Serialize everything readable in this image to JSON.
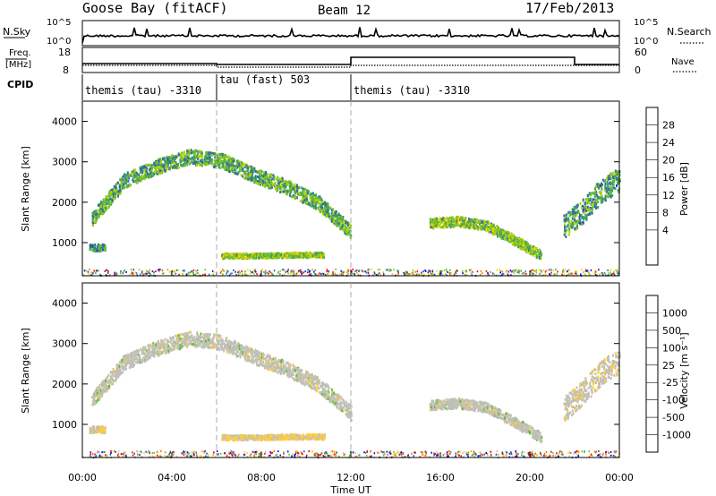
{
  "header": {
    "station": "Goose Bay (fitACF)",
    "beam": "Beam 12",
    "date": "17/Feb/2013"
  },
  "aux": {
    "nsky_label": "N.Sky",
    "nsearch_label": "N.Search",
    "nsky_ticks": [
      "10^5",
      "10^0"
    ],
    "nsearch_ticks": [
      "10^5",
      "10^0"
    ],
    "freq_label_1": "Freq.",
    "freq_label_2": "[MHz]",
    "freq_ticks": [
      "18",
      "8"
    ],
    "nave_label": "Nave",
    "nave_ticks": [
      "60",
      "0"
    ],
    "cpid_label": "CPID",
    "cpid_segments": [
      {
        "label": "themis (tau) -3310",
        "start": 0,
        "end": 6
      },
      {
        "label": "tau (fast) 503",
        "start": 6,
        "end": 12
      },
      {
        "label": "themis (tau) -3310",
        "start": 12,
        "end": 24
      }
    ]
  },
  "panels": {
    "power": {
      "ylabel": "Slant Range [km]",
      "cbar_label": "Power [dB]",
      "cbar_ticks": [
        "28",
        "24",
        "20",
        "16",
        "12",
        "8",
        "4"
      ]
    },
    "velocity": {
      "ylabel": "Slant Range [km]",
      "cbar_label": "Velocity [m s⁻¹]",
      "cbar_ticks": [
        "1000",
        "500",
        "100",
        "25",
        "-25",
        "-100",
        "-500",
        "-1000"
      ]
    }
  },
  "xaxis": {
    "label": "Time UT",
    "ticks": [
      "00:00",
      "04:00",
      "08:00",
      "12:00",
      "16:00",
      "20:00",
      "00:00"
    ]
  },
  "chart_data": [
    {
      "type": "heatmap",
      "title": "Power [dB]",
      "xlabel": "Time UT",
      "ylabel": "Slant Range [km]",
      "xlim_hours": [
        0,
        24
      ],
      "ylim_km": [
        180,
        4500
      ],
      "yticks": [
        1000,
        2000,
        3000,
        4000
      ],
      "color_scale": [
        0,
        30
      ],
      "colors": [
        "#0000ff",
        "#2040c0",
        "#3070a0",
        "#40a060",
        "#70c030",
        "#b0d000",
        "#ffd000",
        "#ff8000",
        "#ff0000"
      ],
      "scatter_regions": [
        {
          "t0": 0.4,
          "t1": 12.0,
          "r_center": [
            1600,
            2550,
            2900,
            3150,
            3050,
            2700,
            2400,
            2000,
            1300
          ],
          "r_half": 180,
          "power": 13
        },
        {
          "t0": 6.2,
          "t1": 10.8,
          "r_center": [
            700,
            700,
            720,
            720
          ],
          "r_half": 60,
          "power": 17
        },
        {
          "t0": 0.3,
          "t1": 1.0,
          "r_center": [
            900,
            900
          ],
          "r_half": 80,
          "power": 10
        },
        {
          "t0": 15.5,
          "t1": 20.5,
          "r_center": [
            1500,
            1550,
            1450,
            1100,
            700
          ],
          "r_half": 120,
          "power": 16
        },
        {
          "t0": 21.5,
          "t1": 24.0,
          "r_center": [
            1400,
            1800,
            2300,
            2600
          ],
          "r_half": 300,
          "power": 12
        }
      ]
    },
    {
      "type": "heatmap",
      "title": "Velocity [m s⁻¹]",
      "xlabel": "Time UT",
      "ylabel": "Slant Range [km]",
      "xlim_hours": [
        0,
        24
      ],
      "ylim_km": [
        180,
        4500
      ],
      "yticks": [
        1000,
        2000,
        3000,
        4000
      ],
      "color_scale": [
        -1000,
        1000
      ],
      "colors": [
        "#ff0000",
        "#ff6000",
        "#ff9a00",
        "#ffcc40",
        "#c0c0b8",
        "#60c030",
        "#40a060",
        "#2050a0",
        "#0000ff"
      ],
      "scatter_regions": [
        {
          "t0": 0.4,
          "t1": 12.0,
          "r_center": [
            1600,
            2550,
            2900,
            3150,
            3050,
            2700,
            2400,
            2000,
            1300
          ],
          "r_half": 180,
          "velocity": 0
        },
        {
          "t0": 6.2,
          "t1": 10.8,
          "r_center": [
            700,
            700,
            720,
            720
          ],
          "r_half": 60,
          "velocity": -150
        },
        {
          "t0": 0.3,
          "t1": 1.0,
          "r_center": [
            900,
            900
          ],
          "r_half": 80,
          "velocity": -120
        },
        {
          "t0": 15.5,
          "t1": 20.5,
          "r_center": [
            1500,
            1550,
            1450,
            1100,
            700
          ],
          "r_half": 120,
          "velocity": 0
        },
        {
          "t0": 21.5,
          "t1": 24.0,
          "r_center": [
            1400,
            1800,
            2300,
            2600
          ],
          "r_half": 300,
          "velocity": -60
        }
      ]
    }
  ]
}
